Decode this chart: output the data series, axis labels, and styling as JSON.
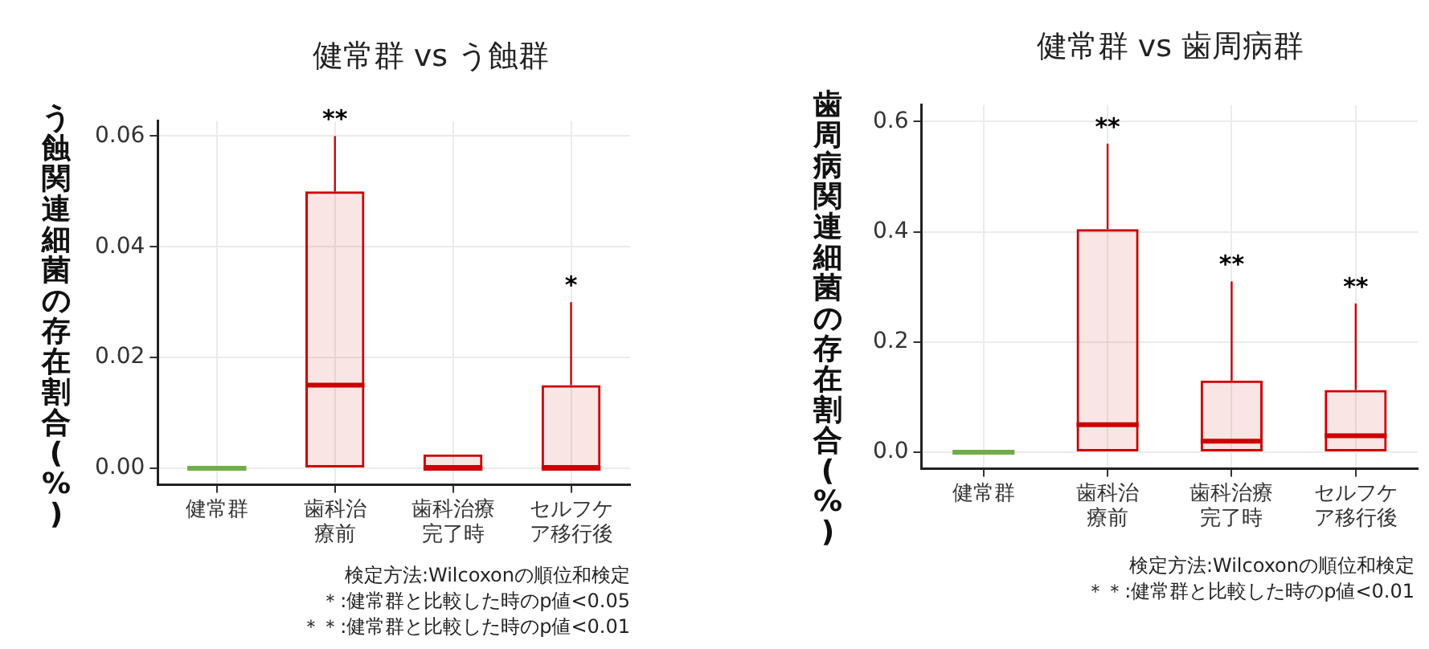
{
  "chart_data": [
    {
      "type": "box",
      "title": "健常群 vs う蝕群",
      "ylabel": "う蝕関連細菌の存在割合(%)",
      "categories": [
        "健常群",
        "歯科治療前",
        "歯科治療完了時",
        "セルフケア移行後"
      ],
      "colors": [
        "#70ad47",
        "#cc0000",
        "#cc0000",
        "#cc0000"
      ],
      "boxes": [
        {
          "low": 0,
          "q1": 0,
          "median": 0,
          "q3": 0,
          "high": 0
        },
        {
          "low": 0,
          "q1": 0,
          "median": 0.015,
          "q3": 0.05,
          "high": 0.06
        },
        {
          "low": 0,
          "q1": 0,
          "median": 0,
          "q3": 0.0025,
          "high": 0.0025
        },
        {
          "low": 0,
          "q1": 0,
          "median": 0,
          "q3": 0.015,
          "high": 0.03
        }
      ],
      "ylim": [
        -0.003,
        0.0627
      ],
      "yticks": [
        {
          "value": 0,
          "label": "0.00"
        },
        {
          "value": 0.02,
          "label": "0.02"
        },
        {
          "value": 0.04,
          "label": "0.04"
        },
        {
          "value": 0.06,
          "label": "0.06"
        }
      ],
      "grid": true,
      "annotations": [
        {
          "text": "**",
          "x": "歯科治療前",
          "y": 0.06
        },
        {
          "text": "*",
          "x": "セルフケア移行後",
          "y": 0.03
        },
        "検定方法:Wilcoxonの順位和検定",
        "＊:健常群と比較した時のp値<0.05",
        "＊＊:健常群と比較した時のp値<0.01"
      ]
    },
    {
      "type": "box",
      "title": "健常群 vs 歯周病群",
      "ylabel": "歯周病関連細菌の存在割合(%)",
      "categories": [
        "健常群",
        "歯科治療前",
        "歯科治療完了時",
        "セルフケア移行後"
      ],
      "colors": [
        "#70ad47",
        "#cc0000",
        "#cc0000",
        "#cc0000"
      ],
      "boxes": [
        {
          "low": 0,
          "q1": 0,
          "median": 0,
          "q3": 0,
          "high": 0
        },
        {
          "low": 0,
          "q1": 0,
          "median": 0.05,
          "q3": 0.405,
          "high": 0.56
        },
        {
          "low": 0,
          "q1": 0,
          "median": 0.02,
          "q3": 0.13,
          "high": 0.31
        },
        {
          "low": 0,
          "q1": 0,
          "median": 0.03,
          "q3": 0.113,
          "high": 0.27
        }
      ],
      "ylim": [
        -0.03,
        0.63
      ],
      "yticks": [
        {
          "value": 0,
          "label": "0.0"
        },
        {
          "value": 0.2,
          "label": "0.2"
        },
        {
          "value": 0.4,
          "label": "0.4"
        },
        {
          "value": 0.6,
          "label": "0.6"
        }
      ],
      "grid": true,
      "annotations": [
        {
          "text": "**",
          "x": "歯科治療前",
          "y": 0.56
        },
        {
          "text": "**",
          "x": "歯科治療完了時",
          "y": 0.31
        },
        {
          "text": "**",
          "x": "セルフケア移行後",
          "y": 0.27
        },
        "検定方法:Wilcoxonの順位和検定",
        "＊＊:健常群と比較した時のp値<0.01"
      ]
    }
  ]
}
